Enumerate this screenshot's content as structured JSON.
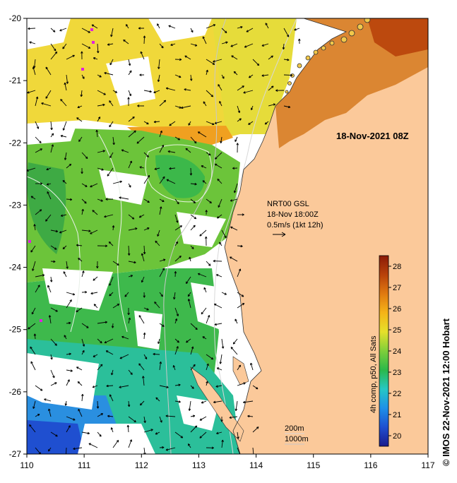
{
  "map": {
    "date_stamp": "18-Nov-2021 08Z",
    "lon_ticks": [
      "110",
      "111",
      "112",
      "113",
      "114",
      "115",
      "116",
      "117"
    ],
    "lat_ticks": [
      "-20",
      "-21",
      "-22",
      "-23",
      "-24",
      "-25",
      "-26",
      "-27"
    ],
    "lon_range": [
      110,
      117
    ],
    "lat_range": [
      -27,
      -20
    ],
    "land_color": "#fbc99a",
    "current_annotation": {
      "line1": "NRT00 GSL",
      "line2": "18-Nov 18:00Z",
      "line3": "0.5m/s (1kt 12h)"
    },
    "contour_annotation": {
      "line1": "200m",
      "line2": "1000m"
    },
    "colorbar": {
      "label": "4h comp, p50, All Sats",
      "ticks": [
        "20",
        "21",
        "22",
        "23",
        "24",
        "25",
        "26",
        "27",
        "28"
      ],
      "range": [
        19.5,
        28.5
      ]
    },
    "credit": "© IMOS 22-Nov-2021 12:00 Hobart"
  }
}
